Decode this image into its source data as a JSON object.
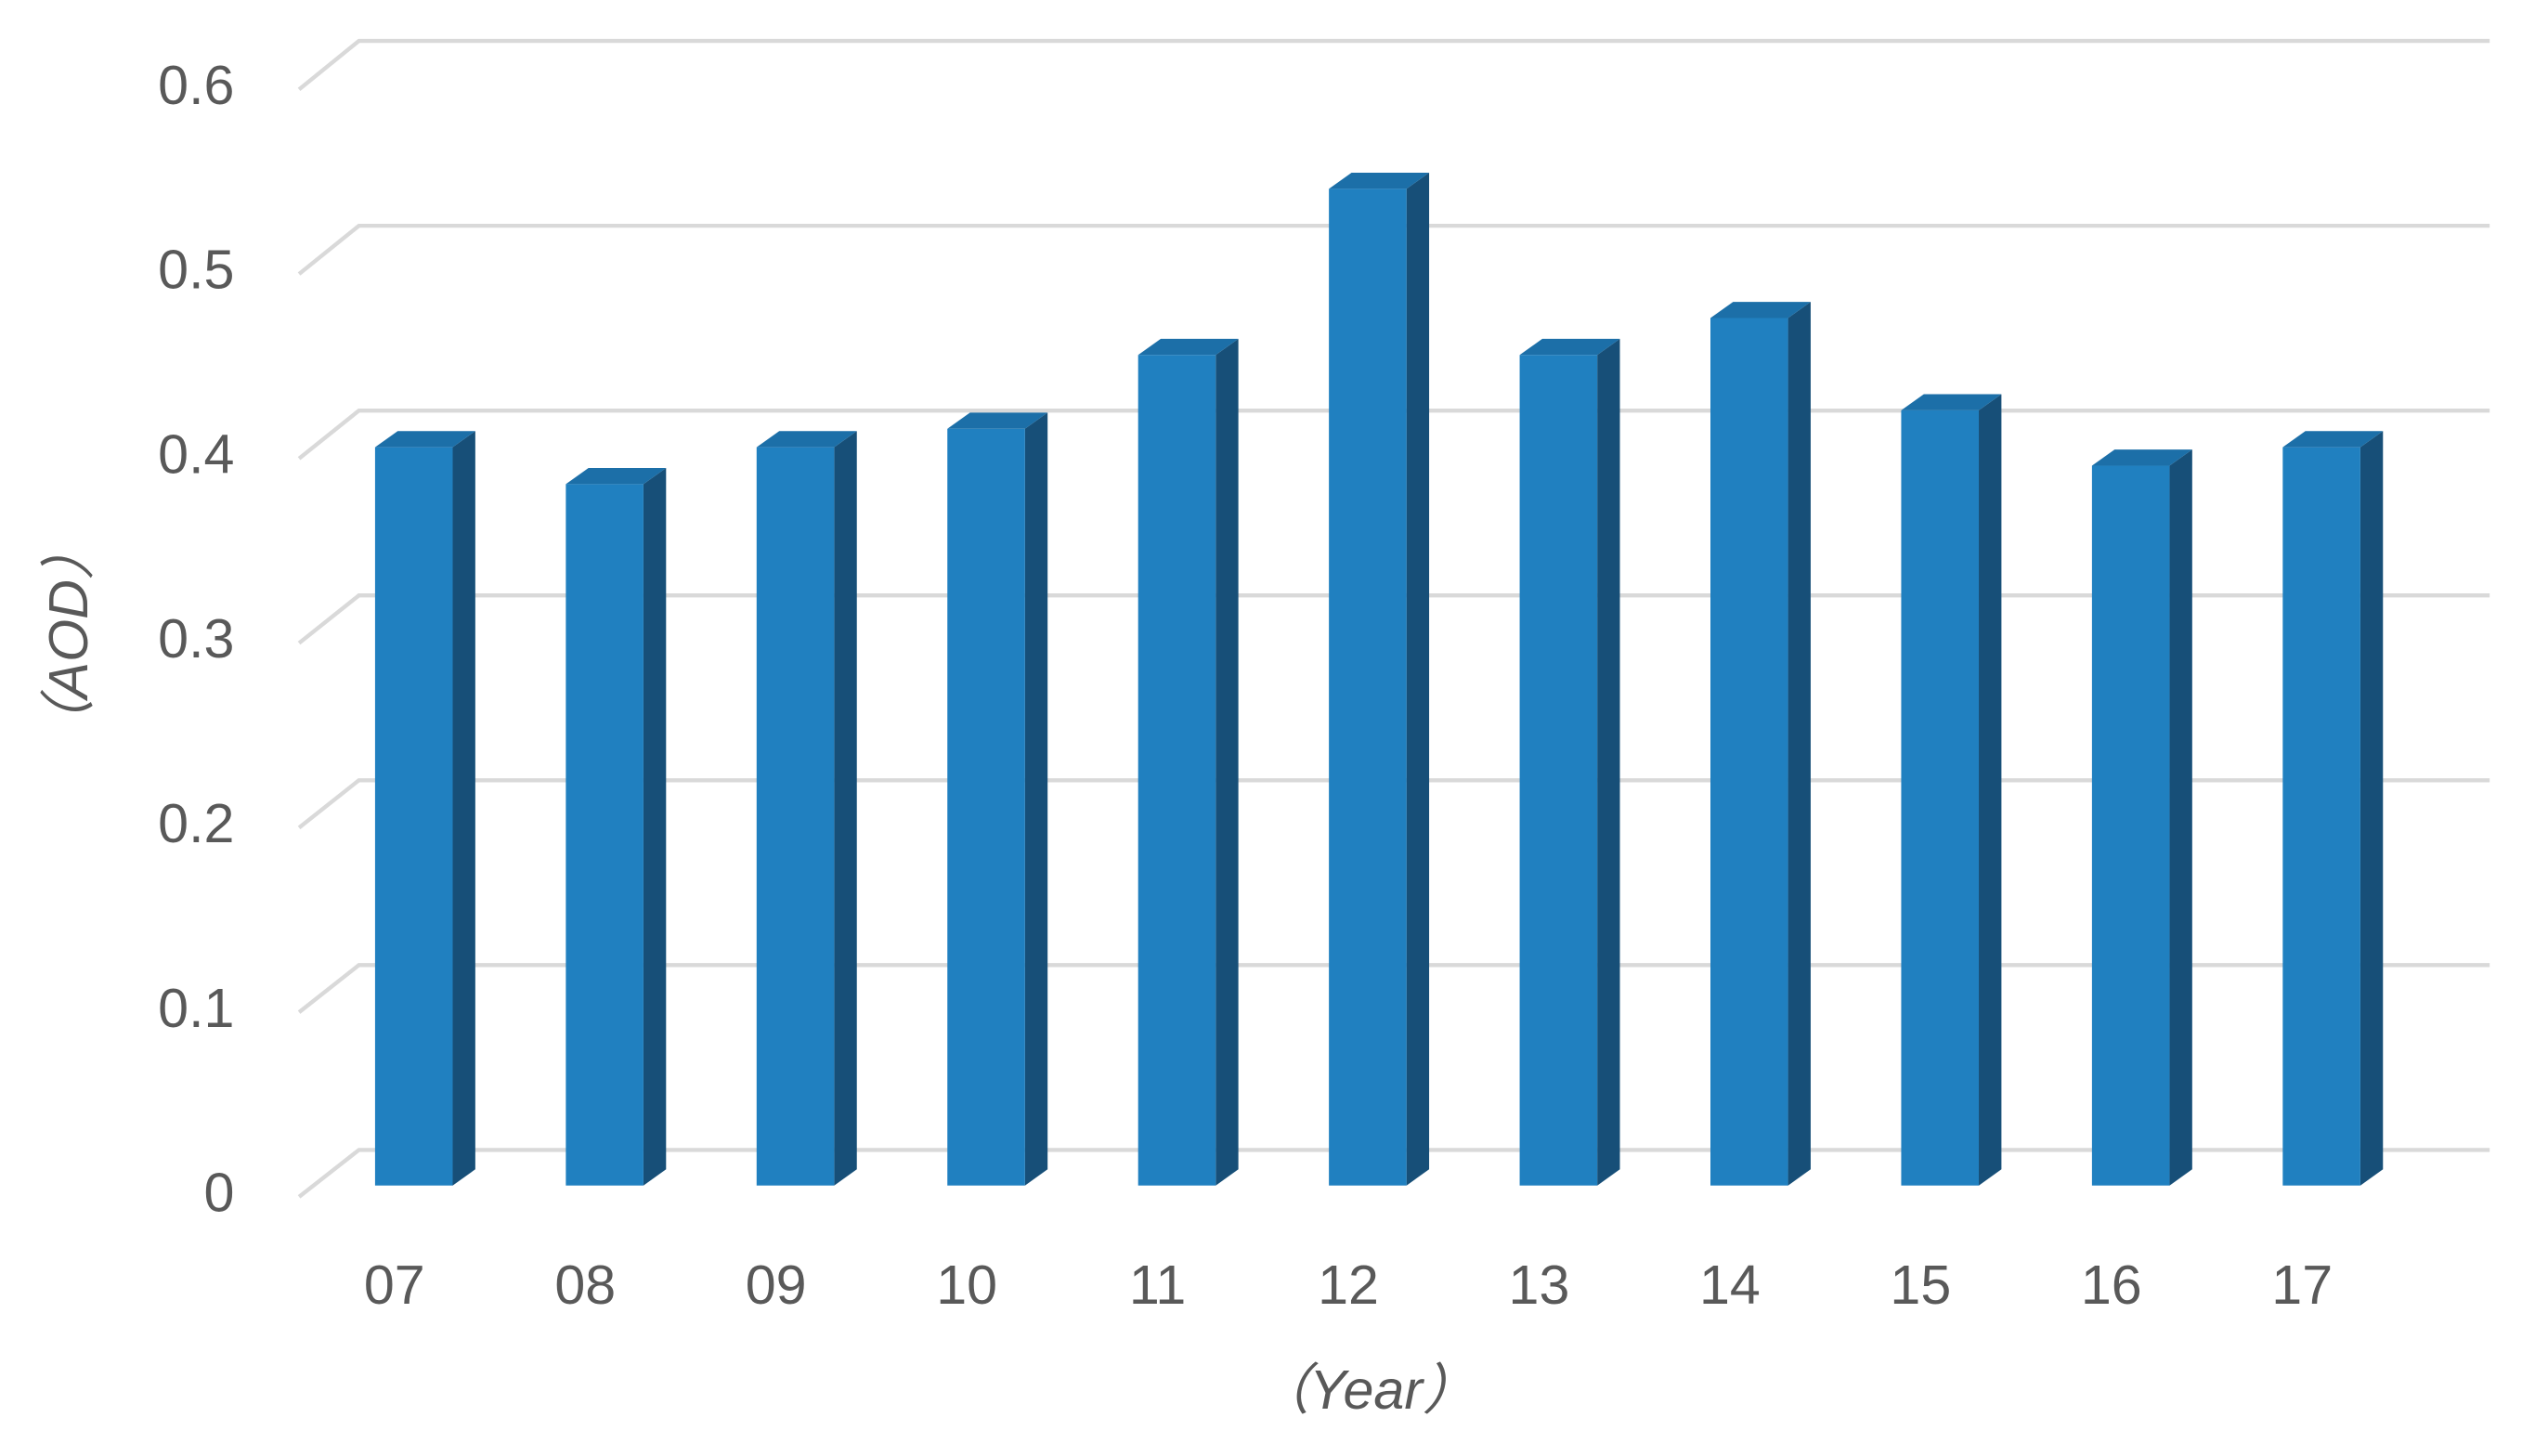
{
  "chart_data": {
    "type": "bar3d",
    "x_label": "（Year）",
    "y_label": "（AOD）",
    "categories": [
      "07",
      "08",
      "09",
      "10",
      "11",
      "12",
      "13",
      "14",
      "15",
      "16",
      "17"
    ],
    "values": [
      0.4,
      0.38,
      0.4,
      0.41,
      0.45,
      0.54,
      0.45,
      0.47,
      0.42,
      0.39,
      0.4
    ],
    "color": "#2080c0",
    "side_color": "#174f78",
    "top_color": "#1c6fa8",
    "ylim": [
      0,
      0.6
    ],
    "yticks": [
      0,
      0.1,
      0.2,
      0.3,
      0.4,
      0.5,
      0.6
    ],
    "grid": true
  }
}
